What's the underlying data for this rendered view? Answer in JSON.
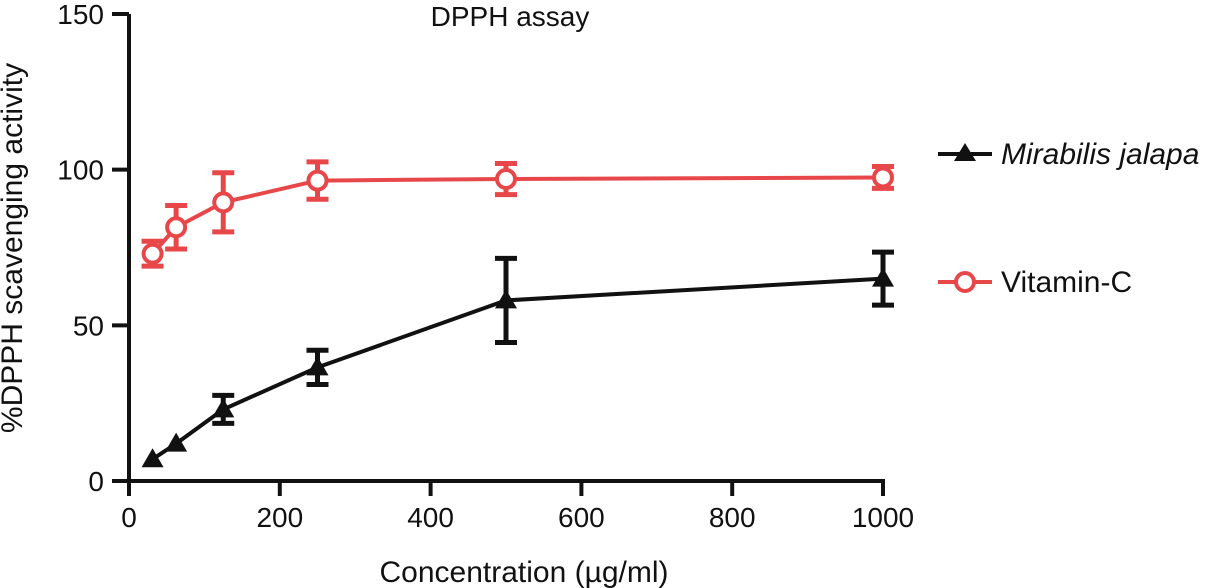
{
  "chart_data": {
    "type": "line",
    "title": "DPPH assay",
    "xlabel": "Concentration (µg/ml)",
    "ylabel": "%DPPH scavenging activity",
    "xlim": [
      0,
      1000
    ],
    "ylim": [
      0,
      150
    ],
    "xticks": [
      0,
      200,
      400,
      600,
      800,
      1000
    ],
    "yticks": [
      0,
      50,
      100,
      150
    ],
    "xtick_labels": [
      "0",
      "200",
      "400",
      "600",
      "800",
      "1000"
    ],
    "ytick_labels": [
      "0",
      "50",
      "100",
      "150"
    ],
    "grid": false,
    "legend_position": "right",
    "series": [
      {
        "name": "Mirabilis jalapa",
        "color": "#111111",
        "marker": "filled-triangle",
        "italic": true,
        "x": [
          31.25,
          62.5,
          125,
          250,
          500,
          1000
        ],
        "y": [
          7,
          12,
          23,
          36.5,
          58,
          65
        ],
        "err": [
          0,
          0,
          4.5,
          5.5,
          13.5,
          8.5
        ]
      },
      {
        "name": "Vitamin-C",
        "color": "#e8474a",
        "marker": "open-circle",
        "italic": false,
        "x": [
          31.25,
          62.5,
          125,
          250,
          500,
          1000
        ],
        "y": [
          73,
          81.5,
          89.5,
          96.5,
          97,
          97.5
        ],
        "err": [
          4,
          7,
          9.5,
          6,
          5,
          3.5
        ]
      }
    ]
  }
}
